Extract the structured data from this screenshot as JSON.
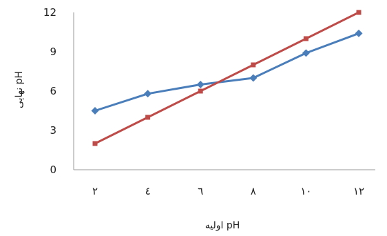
{
  "chart_data": {
    "type": "line",
    "categories": [
      "۲",
      "٤",
      "٦",
      "۸",
      "۱۰",
      "۱۲"
    ],
    "series": [
      {
        "color": "#4a7ebb",
        "marker": "diamond",
        "values": [
          4.5,
          5.8,
          6.5,
          7.0,
          8.9,
          10.4
        ]
      },
      {
        "color": "#be4b48",
        "marker": "square",
        "values": [
          2,
          4,
          6,
          8,
          10,
          12
        ]
      }
    ],
    "yticks": [
      "0",
      "3",
      "6",
      "9",
      "12"
    ],
    "ylim": [
      0,
      12
    ],
    "xlabel": "pH اولیه",
    "ylabel": "pH نهایی",
    "grid": false,
    "legend": "none"
  }
}
